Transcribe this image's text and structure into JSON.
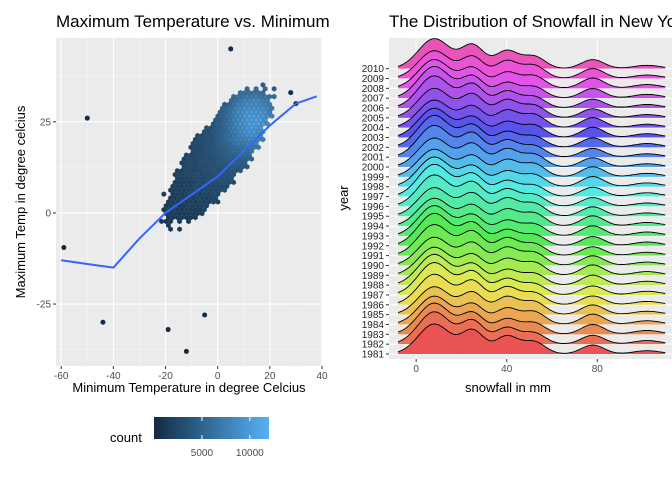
{
  "charts": {
    "left_title": "Maximum Temperature vs. Minimum Temperature",
    "right_title": "The Distribution of Snowfall in New York"
  },
  "chart_data": [
    {
      "type": "scatter",
      "subtype": "hexbin with smooth line",
      "title": "Maximum Temperature vs. Minimum Temperature",
      "xlabel": "Minimum Temperature in degree Celcius",
      "ylabel": "Maximum Temp in degree celcius",
      "xlim": [
        -62,
        40
      ],
      "ylim": [
        -42,
        48
      ],
      "xticks": [
        -60,
        -40,
        -20,
        0,
        20,
        40
      ],
      "yticks": [
        -25,
        0,
        25
      ],
      "legend": {
        "title": "count",
        "position": "bottom",
        "breaks": [
          5000,
          10000
        ],
        "range": [
          0,
          12000
        ],
        "low_color": "#132b43",
        "high_color": "#56b1f7"
      },
      "smooth_color": "#3366ff",
      "smooth_line": [
        [
          -60,
          -13
        ],
        [
          -50,
          -14
        ],
        [
          -40,
          -15
        ],
        [
          -30,
          -7
        ],
        [
          -20,
          0
        ],
        [
          -10,
          5
        ],
        [
          0,
          10
        ],
        [
          10,
          17
        ],
        [
          20,
          24
        ],
        [
          30,
          30
        ],
        [
          38,
          32
        ]
      ],
      "outliers": [
        [
          -50,
          26
        ],
        [
          -59,
          -9.5
        ],
        [
          -44,
          -30
        ],
        [
          -12,
          -38
        ],
        [
          5,
          45
        ],
        [
          -5,
          -28
        ],
        [
          30,
          30
        ],
        [
          -19,
          -32
        ],
        [
          28,
          33
        ]
      ]
    },
    {
      "type": "area",
      "subtype": "ridgeline",
      "title": "The Distribution of Snowfall in New York",
      "xlabel": "snowfall in mm",
      "ylabel": "year",
      "xlim": [
        -12,
        113
      ],
      "xticks": [
        0,
        40,
        80
      ],
      "categories": [
        "1981",
        "1982",
        "1983",
        "1984",
        "1985",
        "1986",
        "1987",
        "1988",
        "1989",
        "1990",
        "1991",
        "1992",
        "1993",
        "1994",
        "1995",
        "1996",
        "1997",
        "1998",
        "1999",
        "2000",
        "2001",
        "2002",
        "2003",
        "2004",
        "2005",
        "2006",
        "2007",
        "2008",
        "2009",
        "2010"
      ],
      "density_peaks_mm": [
        8,
        25,
        40,
        52,
        78,
        102
      ],
      "density_heights": [
        1.0,
        0.72,
        0.55,
        0.4,
        0.32,
        0.12
      ],
      "fill": "hue palette by year (red → orange → green → cyan → blue → purple → pink)"
    }
  ]
}
